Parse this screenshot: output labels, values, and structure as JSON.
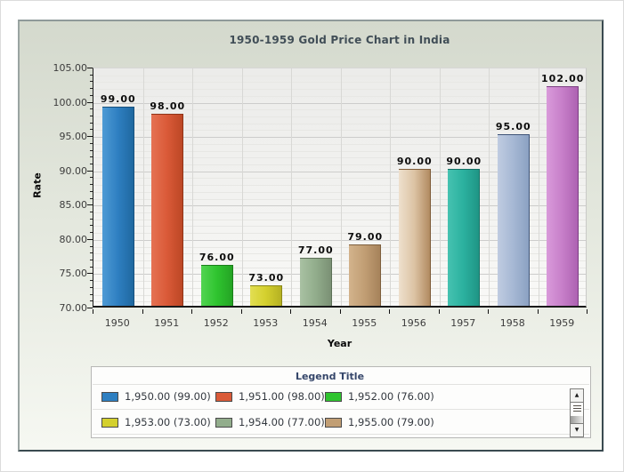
{
  "chart_data": {
    "type": "bar",
    "title": "1950-1959 Gold Price Chart in India",
    "xlabel": "Year",
    "ylabel": "Rate",
    "categories": [
      "1950",
      "1951",
      "1952",
      "1953",
      "1954",
      "1955",
      "1956",
      "1957",
      "1958",
      "1959"
    ],
    "values": [
      99,
      98,
      76,
      73,
      77,
      79,
      90,
      90,
      95,
      102
    ],
    "bar_value_labels": [
      "99.00",
      "98.00",
      "76.00",
      "73.00",
      "77.00",
      "79.00",
      "90.00",
      "90.00",
      "95.00",
      "102.00"
    ],
    "ylim": [
      70,
      105
    ],
    "ytick_interval": 5,
    "ytick_labels_top_to_bottom": [
      "105.00",
      "100.00",
      "95.00",
      "90.00",
      "85.00",
      "80.00",
      "75.00",
      "70.00"
    ],
    "grid": true,
    "legend_position": "bottom",
    "bar_colors": [
      {
        "light": "#4f9bd5",
        "base": "#2e7fc1",
        "dark": "#1f689f",
        "border": "#17507d"
      },
      {
        "light": "#e57253",
        "base": "#da5a38",
        "dark": "#bc4725",
        "border": "#8f3418"
      },
      {
        "light": "#52d452",
        "base": "#2fc42f",
        "dark": "#24a424",
        "border": "#1b7d1b"
      },
      {
        "light": "#e2de52",
        "base": "#d4d02e",
        "dark": "#b5b122",
        "border": "#8a8718"
      },
      {
        "light": "#a9c1a3",
        "base": "#92ad8c",
        "dark": "#7a9074",
        "border": "#5d7058"
      },
      {
        "light": "#d3b38c",
        "base": "#c19e74",
        "dark": "#a6825a",
        "border": "#7d5f3e"
      },
      {
        "light": "#eee0cd",
        "base": "#dcc3a4",
        "dark": "#b18a60",
        "border": "#7d5b38"
      },
      {
        "light": "#46c2b1",
        "base": "#2bb19f",
        "dark": "#1f9585",
        "border": "#156f63"
      },
      {
        "light": "#c0cce1",
        "base": "#a6b8d4",
        "dark": "#8ba1c2",
        "border": "#3e5377"
      },
      {
        "light": "#d99ada",
        "base": "#c77fc9",
        "dark": "#ad62b2",
        "border": "#7c3f82"
      }
    ]
  },
  "legend": {
    "title": "Legend Title",
    "items": [
      {
        "label": "1,950.00 (99.00)",
        "color": "#2e7fc1"
      },
      {
        "label": "1,951.00 (98.00)",
        "color": "#da5a38"
      },
      {
        "label": "1,952.00 (76.00)",
        "color": "#2fc42f"
      },
      {
        "label": "1,953.00 (73.00)",
        "color": "#d4d02e"
      },
      {
        "label": "1,954.00 (77.00)",
        "color": "#92ad8c"
      },
      {
        "label": "1,955.00 (79.00)",
        "color": "#c19e74"
      }
    ],
    "scrollbar": {
      "up_arrow": "▲",
      "down_arrow": "▼"
    }
  }
}
